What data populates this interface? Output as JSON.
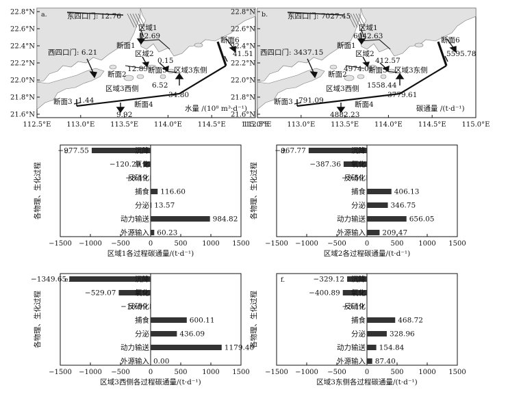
{
  "colors": {
    "land": "#e2e2e2",
    "sea": "#ffffff",
    "bar": "#333333",
    "ink": "#111111"
  },
  "maps": [
    {
      "panel": "a.",
      "x_ticks": [
        "112.5°E",
        "113.0°E",
        "113.5°E",
        "114.0°E",
        "114.5°E",
        "115.0°E"
      ],
      "y_ticks": [
        "22.8°N",
        "22.6°N",
        "22.4°N",
        "22.2°N",
        "22.0°N",
        "21.8°N",
        "21.6°N"
      ],
      "regions": {
        "r1": "区域1",
        "r2": "区域2",
        "r3e": "区域3东侧",
        "r3w": "区域3西侧"
      },
      "sections": {
        "s1": "断面1",
        "s2": "断面2",
        "s3": "断面3",
        "s4": "断面4",
        "s5": "断面5",
        "s6": "断面6"
      },
      "east_mouth": "东四口门: 12.76",
      "west_mouth": "西四口门: 6.21",
      "values": {
        "v1": "12.69",
        "v2": "12.89",
        "v3": "0.15",
        "v4": "6.52",
        "v5": "34.80",
        "v6": "41.51",
        "v7": "1.44",
        "v8": "9.92"
      },
      "unit_label": "水量 /(10⁸ m³·d⁻¹)"
    },
    {
      "panel": "b.",
      "x_ticks": [
        "112.5°E",
        "113.0°E",
        "113.5°E",
        "114.0°E",
        "114.5°E",
        "115.0°E"
      ],
      "y_ticks": [
        "22.8°N",
        "22.6°N",
        "22.4°N",
        "22.2°N",
        "22.0°N",
        "21.8°N",
        "21.6°N"
      ],
      "regions": {
        "r1": "区域1",
        "r2": "区域2",
        "r3e": "区域3东侧",
        "r3w": "区域3西侧"
      },
      "sections": {
        "s1": "断面1",
        "s2": "断面2",
        "s3": "断面3",
        "s4": "断面4",
        "s5": "断面5",
        "s6": "断面6"
      },
      "east_mouth": "东四口门: 7027.45",
      "west_mouth": "西四口门: 3437.15",
      "values": {
        "v1": "6042.63",
        "v2": "4974.01",
        "v3": "412.57",
        "v4": "1558.44",
        "v5": "3779.61",
        "v6": "5595.78",
        "v7": "791.09",
        "v8": "4882.23"
      },
      "unit_label": "碳通量 /(t·d⁻¹)"
    }
  ],
  "chart_data": [
    {
      "type": "bar",
      "orientation": "horizontal",
      "panel": "c.",
      "categories": [
        "沉降",
        "氧化",
        "反硝化",
        "捕食",
        "分泌",
        "动力输送",
        "外源输入"
      ],
      "values": [
        -977.55,
        -120.29,
        -8.19,
        116.6,
        13.57,
        984.82,
        60.23
      ],
      "value_labels": [
        "−977.55",
        "−120.29",
        "−8.19",
        "116.60",
        "13.57",
        "984.82",
        "60.23"
      ],
      "xlim": [
        -1500,
        1500
      ],
      "x_ticks": [
        "−1500",
        "−1000",
        "−500",
        "0",
        "500",
        "1000",
        "1500"
      ],
      "xlabel": "区域1各过程碳通量/(t·d⁻¹)",
      "ylabel": "各物理、生化过程"
    },
    {
      "type": "bar",
      "orientation": "horizontal",
      "panel": "d.",
      "categories": [
        "沉降",
        "氧化",
        "反硝化",
        "捕食",
        "分泌",
        "动力输送",
        "外源输入"
      ],
      "values": [
        -967.77,
        -387.36,
        -9.56,
        406.13,
        346.75,
        656.05,
        209.47
      ],
      "value_labels": [
        "−967.77",
        "−387.36",
        "−9.56",
        "406.13",
        "346.75",
        "656.05",
        "209.47"
      ],
      "xlim": [
        -1500,
        1500
      ],
      "x_ticks": [
        "−1500",
        "−1000",
        "−500",
        "0",
        "500",
        "1000",
        "1500"
      ],
      "xlabel": "区域2各过程碳通量/(t·d⁻¹)",
      "ylabel": "各物理、生化过程"
    },
    {
      "type": "bar",
      "orientation": "horizontal",
      "panel": "e.",
      "categories": [
        "沉降",
        "氧化",
        "反硝化",
        "捕食",
        "分泌",
        "动力输送",
        "外源输入"
      ],
      "values": [
        -1349.65,
        -529.07,
        -10.99,
        600.11,
        436.09,
        1179.4,
        0.0
      ],
      "value_labels": [
        "−1349.65",
        "−529.07",
        "−10.99",
        "600.11",
        "436.09",
        "1179.40",
        "0.00"
      ],
      "xlim": [
        -1500,
        1500
      ],
      "x_ticks": [
        "−1500",
        "−1000",
        "−500",
        "0",
        "500",
        "1000",
        "1500"
      ],
      "xlabel": "区域3西侧各过程碳通量/(t·d⁻¹)",
      "ylabel": "各物理、生化过程"
    },
    {
      "type": "bar",
      "orientation": "horizontal",
      "panel": "f.",
      "categories": [
        "沉降",
        "氧化",
        "反硝化",
        "捕食",
        "分泌",
        "动力输送",
        "外源输入"
      ],
      "values": [
        -329.12,
        -400.89,
        -3.19,
        468.72,
        328.96,
        154.84,
        87.4
      ],
      "value_labels": [
        "−329.12",
        "−400.89",
        "−3.19",
        "468.72",
        "328.96",
        "154.84",
        "87.40"
      ],
      "xlim": [
        -1500,
        1500
      ],
      "x_ticks": [
        "−1500",
        "−1000",
        "−500",
        "0",
        "500",
        "1000",
        "1500"
      ],
      "xlabel": "区域3东侧各过程碳通量/(t·d⁻¹)",
      "ylabel": "各物理、生化过程"
    }
  ]
}
